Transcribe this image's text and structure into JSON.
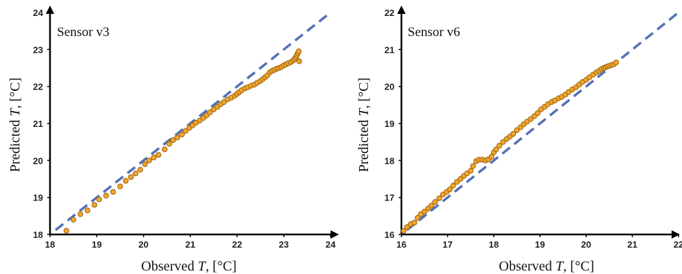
{
  "chart_data": [
    {
      "type": "scatter",
      "title": "Sensor v3",
      "xlabel": {
        "pre": "Observed ",
        "var": "T",
        "post": ", [°C]"
      },
      "ylabel": {
        "pre": "Predicted ",
        "var": "T",
        "post": ", [°C]"
      },
      "xlim": [
        18,
        24
      ],
      "ylim": [
        18,
        24
      ],
      "xticks": [
        "18",
        "19",
        "20",
        "21",
        "22",
        "23",
        "24"
      ],
      "yticks": [
        "18",
        "19",
        "20",
        "21",
        "22",
        "23",
        "24"
      ],
      "reference_line": "y = x",
      "colors": {
        "points": "#f0a52c",
        "point_edge": "#9a6410",
        "reference": "#5470b8"
      },
      "points": {
        "x": [
          18.35,
          18.5,
          18.65,
          18.8,
          18.95,
          19.05,
          19.2,
          19.35,
          19.5,
          19.62,
          19.73,
          19.83,
          19.93,
          20.03,
          20.12,
          20.22,
          20.32,
          20.45,
          20.55,
          20.63,
          20.72,
          20.82,
          20.9,
          20.98,
          21.05,
          21.12,
          21.2,
          21.28,
          21.35,
          21.42,
          21.5,
          21.58,
          21.65,
          21.72,
          21.8,
          21.88,
          21.95,
          22.0,
          22.05,
          22.1,
          22.17,
          22.23,
          22.3,
          22.37,
          22.43,
          22.5,
          22.55,
          22.6,
          22.65,
          22.7,
          22.75,
          22.8,
          22.85,
          22.9,
          22.95,
          23.0,
          23.05,
          23.1,
          23.15,
          23.2,
          23.23,
          23.26,
          23.28,
          23.3,
          23.32,
          23.33
        ],
        "y": [
          18.1,
          18.4,
          18.55,
          18.65,
          18.8,
          18.95,
          19.05,
          19.15,
          19.3,
          19.45,
          19.55,
          19.65,
          19.75,
          19.9,
          20.0,
          20.08,
          20.15,
          20.3,
          20.45,
          20.55,
          20.62,
          20.7,
          20.8,
          20.88,
          20.95,
          21.02,
          21.08,
          21.15,
          21.22,
          21.3,
          21.38,
          21.45,
          21.52,
          21.58,
          21.65,
          21.7,
          21.75,
          21.8,
          21.85,
          21.9,
          21.95,
          21.98,
          22.02,
          22.05,
          22.1,
          22.15,
          22.2,
          22.25,
          22.3,
          22.38,
          22.42,
          22.45,
          22.48,
          22.5,
          22.53,
          22.57,
          22.6,
          22.63,
          22.66,
          22.7,
          22.75,
          22.8,
          22.85,
          22.9,
          22.95,
          22.68
        ]
      }
    },
    {
      "type": "scatter",
      "title": "Sensor v6",
      "xlabel": {
        "pre": "Observed ",
        "var": "T",
        "post": ", [°C]"
      },
      "ylabel": {
        "pre": "Predicted ",
        "var": "T",
        "post": ", [°C]"
      },
      "xlim": [
        16,
        22
      ],
      "ylim": [
        16,
        22
      ],
      "xticks": [
        "16",
        "17",
        "18",
        "19",
        "20",
        "21",
        "22"
      ],
      "yticks": [
        "16",
        "17",
        "18",
        "19",
        "20",
        "21",
        "22"
      ],
      "reference_line": "y = x",
      "colors": {
        "points": "#f0a52c",
        "point_edge": "#9a6410",
        "reference": "#5470b8"
      },
      "points": {
        "x": [
          16.05,
          16.12,
          16.2,
          16.28,
          16.35,
          16.42,
          16.5,
          16.58,
          16.65,
          16.73,
          16.82,
          16.9,
          16.98,
          17.05,
          17.12,
          17.2,
          17.28,
          17.35,
          17.42,
          17.5,
          17.55,
          17.62,
          17.68,
          17.75,
          17.82,
          17.88,
          17.95,
          18.0,
          18.05,
          18.12,
          18.2,
          18.28,
          18.35,
          18.42,
          18.5,
          18.58,
          18.65,
          18.72,
          18.8,
          18.88,
          18.95,
          19.02,
          19.1,
          19.17,
          19.25,
          19.32,
          19.4,
          19.47,
          19.55,
          19.62,
          19.7,
          19.78,
          19.85,
          19.92,
          20.0,
          20.07,
          20.15,
          20.22,
          20.28,
          20.33,
          20.38,
          20.42,
          20.46,
          20.5,
          20.55,
          20.6,
          20.65
        ],
        "y": [
          16.1,
          16.2,
          16.28,
          16.32,
          16.45,
          16.55,
          16.62,
          16.7,
          16.78,
          16.88,
          16.98,
          17.08,
          17.15,
          17.22,
          17.32,
          17.42,
          17.5,
          17.58,
          17.65,
          17.72,
          17.85,
          17.98,
          18.02,
          18.02,
          18.0,
          18.03,
          18.1,
          18.22,
          18.3,
          18.4,
          18.5,
          18.58,
          18.65,
          18.72,
          18.82,
          18.9,
          18.98,
          19.05,
          19.12,
          19.2,
          19.28,
          19.38,
          19.45,
          19.52,
          19.58,
          19.62,
          19.68,
          19.72,
          19.78,
          19.85,
          19.92,
          19.98,
          20.05,
          20.12,
          20.18,
          20.25,
          20.32,
          20.38,
          20.42,
          20.47,
          20.5,
          20.52,
          20.54,
          20.56,
          20.58,
          20.6,
          20.65
        ]
      }
    }
  ]
}
